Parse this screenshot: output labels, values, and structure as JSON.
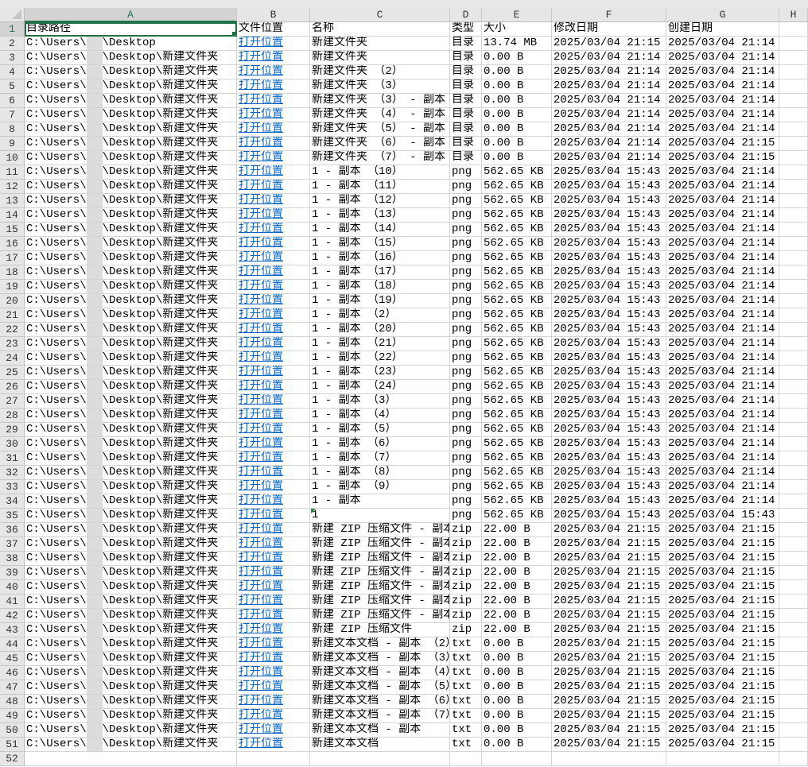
{
  "columns": [
    "A",
    "B",
    "C",
    "D",
    "E",
    "F",
    "G",
    "H"
  ],
  "selected_cell": "A1",
  "header_row": [
    "目录路径",
    "文件位置",
    "名称",
    "类型",
    "大小",
    "修改日期",
    "创建日期"
  ],
  "path_prefix": "C:\\Users\\",
  "rows": [
    [
      "\\Desktop",
      "打开位置",
      "新建文件夹",
      "目录",
      "13.74 MB",
      "2025/03/04 21:15",
      "2025/03/04 21:14"
    ],
    [
      "\\Desktop\\新建文件夹",
      "打开位置",
      "新建文件夹",
      "目录",
      "0.00 B",
      "2025/03/04 21:14",
      "2025/03/04 21:14"
    ],
    [
      "\\Desktop\\新建文件夹",
      "打开位置",
      "新建文件夹 （2）",
      "目录",
      "0.00 B",
      "2025/03/04 21:14",
      "2025/03/04 21:14"
    ],
    [
      "\\Desktop\\新建文件夹",
      "打开位置",
      "新建文件夹 （3）",
      "目录",
      "0.00 B",
      "2025/03/04 21:14",
      "2025/03/04 21:14"
    ],
    [
      "\\Desktop\\新建文件夹",
      "打开位置",
      "新建文件夹 （3） - 副本",
      "目录",
      "0.00 B",
      "2025/03/04 21:14",
      "2025/03/04 21:14"
    ],
    [
      "\\Desktop\\新建文件夹",
      "打开位置",
      "新建文件夹 （4） - 副本",
      "目录",
      "0.00 B",
      "2025/03/04 21:14",
      "2025/03/04 21:14"
    ],
    [
      "\\Desktop\\新建文件夹",
      "打开位置",
      "新建文件夹 （5） - 副本",
      "目录",
      "0.00 B",
      "2025/03/04 21:14",
      "2025/03/04 21:14"
    ],
    [
      "\\Desktop\\新建文件夹",
      "打开位置",
      "新建文件夹 （6） - 副本",
      "目录",
      "0.00 B",
      "2025/03/04 21:14",
      "2025/03/04 21:15"
    ],
    [
      "\\Desktop\\新建文件夹",
      "打开位置",
      "新建文件夹 （7） - 副本",
      "目录",
      "0.00 B",
      "2025/03/04 21:14",
      "2025/03/04 21:15"
    ],
    [
      "\\Desktop\\新建文件夹",
      "打开位置",
      "1 - 副本 （10）",
      "png",
      "562.65 KB",
      "2025/03/04 15:43",
      "2025/03/04 21:14"
    ],
    [
      "\\Desktop\\新建文件夹",
      "打开位置",
      "1 - 副本 （11）",
      "png",
      "562.65 KB",
      "2025/03/04 15:43",
      "2025/03/04 21:14"
    ],
    [
      "\\Desktop\\新建文件夹",
      "打开位置",
      "1 - 副本 （12）",
      "png",
      "562.65 KB",
      "2025/03/04 15:43",
      "2025/03/04 21:14"
    ],
    [
      "\\Desktop\\新建文件夹",
      "打开位置",
      "1 - 副本 （13）",
      "png",
      "562.65 KB",
      "2025/03/04 15:43",
      "2025/03/04 21:14"
    ],
    [
      "\\Desktop\\新建文件夹",
      "打开位置",
      "1 - 副本 （14）",
      "png",
      "562.65 KB",
      "2025/03/04 15:43",
      "2025/03/04 21:14"
    ],
    [
      "\\Desktop\\新建文件夹",
      "打开位置",
      "1 - 副本 （15）",
      "png",
      "562.65 KB",
      "2025/03/04 15:43",
      "2025/03/04 21:14"
    ],
    [
      "\\Desktop\\新建文件夹",
      "打开位置",
      "1 - 副本 （16）",
      "png",
      "562.65 KB",
      "2025/03/04 15:43",
      "2025/03/04 21:14"
    ],
    [
      "\\Desktop\\新建文件夹",
      "打开位置",
      "1 - 副本 （17）",
      "png",
      "562.65 KB",
      "2025/03/04 15:43",
      "2025/03/04 21:14"
    ],
    [
      "\\Desktop\\新建文件夹",
      "打开位置",
      "1 - 副本 （18）",
      "png",
      "562.65 KB",
      "2025/03/04 15:43",
      "2025/03/04 21:14"
    ],
    [
      "\\Desktop\\新建文件夹",
      "打开位置",
      "1 - 副本 （19）",
      "png",
      "562.65 KB",
      "2025/03/04 15:43",
      "2025/03/04 21:14"
    ],
    [
      "\\Desktop\\新建文件夹",
      "打开位置",
      "1 - 副本 （2）",
      "png",
      "562.65 KB",
      "2025/03/04 15:43",
      "2025/03/04 21:14"
    ],
    [
      "\\Desktop\\新建文件夹",
      "打开位置",
      "1 - 副本 （20）",
      "png",
      "562.65 KB",
      "2025/03/04 15:43",
      "2025/03/04 21:14"
    ],
    [
      "\\Desktop\\新建文件夹",
      "打开位置",
      "1 - 副本 （21）",
      "png",
      "562.65 KB",
      "2025/03/04 15:43",
      "2025/03/04 21:14"
    ],
    [
      "\\Desktop\\新建文件夹",
      "打开位置",
      "1 - 副本 （22）",
      "png",
      "562.65 KB",
      "2025/03/04 15:43",
      "2025/03/04 21:14"
    ],
    [
      "\\Desktop\\新建文件夹",
      "打开位置",
      "1 - 副本 （23）",
      "png",
      "562.65 KB",
      "2025/03/04 15:43",
      "2025/03/04 21:14"
    ],
    [
      "\\Desktop\\新建文件夹",
      "打开位置",
      "1 - 副本 （24）",
      "png",
      "562.65 KB",
      "2025/03/04 15:43",
      "2025/03/04 21:14"
    ],
    [
      "\\Desktop\\新建文件夹",
      "打开位置",
      "1 - 副本 （3）",
      "png",
      "562.65 KB",
      "2025/03/04 15:43",
      "2025/03/04 21:14"
    ],
    [
      "\\Desktop\\新建文件夹",
      "打开位置",
      "1 - 副本 （4）",
      "png",
      "562.65 KB",
      "2025/03/04 15:43",
      "2025/03/04 21:14"
    ],
    [
      "\\Desktop\\新建文件夹",
      "打开位置",
      "1 - 副本 （5）",
      "png",
      "562.65 KB",
      "2025/03/04 15:43",
      "2025/03/04 21:14"
    ],
    [
      "\\Desktop\\新建文件夹",
      "打开位置",
      "1 - 副本 （6）",
      "png",
      "562.65 KB",
      "2025/03/04 15:43",
      "2025/03/04 21:14"
    ],
    [
      "\\Desktop\\新建文件夹",
      "打开位置",
      "1 - 副本 （7）",
      "png",
      "562.65 KB",
      "2025/03/04 15:43",
      "2025/03/04 21:14"
    ],
    [
      "\\Desktop\\新建文件夹",
      "打开位置",
      "1 - 副本 （8）",
      "png",
      "562.65 KB",
      "2025/03/04 15:43",
      "2025/03/04 21:14"
    ],
    [
      "\\Desktop\\新建文件夹",
      "打开位置",
      "1 - 副本 （9）",
      "png",
      "562.65 KB",
      "2025/03/04 15:43",
      "2025/03/04 21:14"
    ],
    [
      "\\Desktop\\新建文件夹",
      "打开位置",
      "1 - 副本",
      "png",
      "562.65 KB",
      "2025/03/04 15:43",
      "2025/03/04 21:14"
    ],
    [
      "\\Desktop\\新建文件夹",
      "打开位置",
      "1",
      "png",
      "562.65 KB",
      "2025/03/04 15:43",
      "2025/03/04 15:43"
    ],
    [
      "\\Desktop\\新建文件夹",
      "打开位置",
      "新建 ZIP 压缩文件 - 副本",
      "zip",
      "22.00 B",
      "2025/03/04 21:15",
      "2025/03/04 21:15"
    ],
    [
      "\\Desktop\\新建文件夹",
      "打开位置",
      "新建 ZIP 压缩文件 - 副本",
      "zip",
      "22.00 B",
      "2025/03/04 21:15",
      "2025/03/04 21:15"
    ],
    [
      "\\Desktop\\新建文件夹",
      "打开位置",
      "新建 ZIP 压缩文件 - 副本",
      "zip",
      "22.00 B",
      "2025/03/04 21:15",
      "2025/03/04 21:15"
    ],
    [
      "\\Desktop\\新建文件夹",
      "打开位置",
      "新建 ZIP 压缩文件 - 副本",
      "zip",
      "22.00 B",
      "2025/03/04 21:15",
      "2025/03/04 21:15"
    ],
    [
      "\\Desktop\\新建文件夹",
      "打开位置",
      "新建 ZIP 压缩文件 - 副本",
      "zip",
      "22.00 B",
      "2025/03/04 21:15",
      "2025/03/04 21:15"
    ],
    [
      "\\Desktop\\新建文件夹",
      "打开位置",
      "新建 ZIP 压缩文件 - 副本",
      "zip",
      "22.00 B",
      "2025/03/04 21:15",
      "2025/03/04 21:15"
    ],
    [
      "\\Desktop\\新建文件夹",
      "打开位置",
      "新建 ZIP 压缩文件 - 副本",
      "zip",
      "22.00 B",
      "2025/03/04 21:15",
      "2025/03/04 21:15"
    ],
    [
      "\\Desktop\\新建文件夹",
      "打开位置",
      "新建 ZIP 压缩文件",
      "zip",
      "22.00 B",
      "2025/03/04 21:15",
      "2025/03/04 21:15"
    ],
    [
      "\\Desktop\\新建文件夹",
      "打开位置",
      "新建文本文档 - 副本 （2）",
      "txt",
      "0.00 B",
      "2025/03/04 21:15",
      "2025/03/04 21:15"
    ],
    [
      "\\Desktop\\新建文件夹",
      "打开位置",
      "新建文本文档 - 副本 （3）",
      "txt",
      "0.00 B",
      "2025/03/04 21:15",
      "2025/03/04 21:15"
    ],
    [
      "\\Desktop\\新建文件夹",
      "打开位置",
      "新建文本文档 - 副本 （4）",
      "txt",
      "0.00 B",
      "2025/03/04 21:15",
      "2025/03/04 21:15"
    ],
    [
      "\\Desktop\\新建文件夹",
      "打开位置",
      "新建文本文档 - 副本 （5）",
      "txt",
      "0.00 B",
      "2025/03/04 21:15",
      "2025/03/04 21:15"
    ],
    [
      "\\Desktop\\新建文件夹",
      "打开位置",
      "新建文本文档 - 副本 （6）",
      "txt",
      "0.00 B",
      "2025/03/04 21:15",
      "2025/03/04 21:15"
    ],
    [
      "\\Desktop\\新建文件夹",
      "打开位置",
      "新建文本文档 - 副本 （7）",
      "txt",
      "0.00 B",
      "2025/03/04 21:15",
      "2025/03/04 21:15"
    ],
    [
      "\\Desktop\\新建文件夹",
      "打开位置",
      "新建文本文档 - 副本",
      "txt",
      "0.00 B",
      "2025/03/04 21:15",
      "2025/03/04 21:15"
    ],
    [
      "\\Desktop\\新建文件夹",
      "打开位置",
      "新建文本文档",
      "txt",
      "0.00 B",
      "2025/03/04 21:15",
      "2025/03/04 21:15"
    ]
  ],
  "empty_row_numbers": [
    52
  ],
  "colors": {
    "accent": "#217346",
    "link": "#0563c1",
    "header_bg": "#e6e6e6",
    "gridline": "#d4d4d4"
  }
}
